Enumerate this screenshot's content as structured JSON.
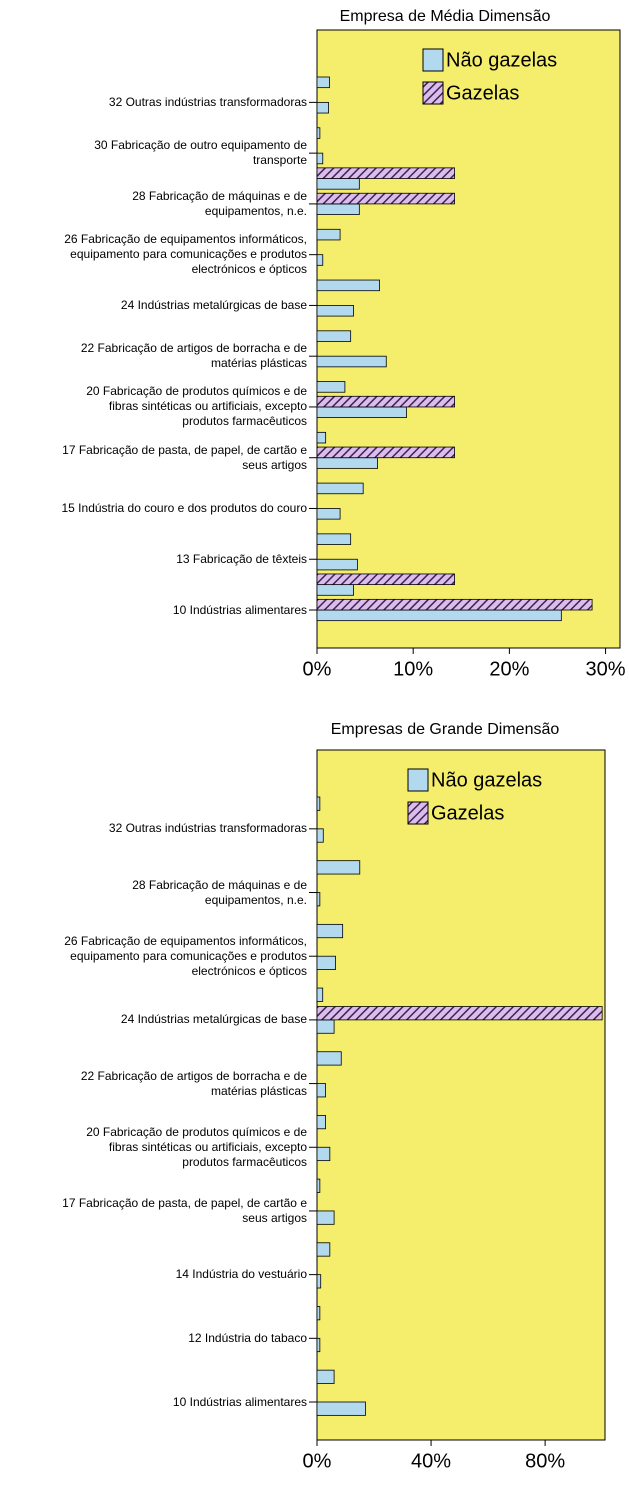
{
  "chart_data": [
    {
      "type": "bar",
      "orientation": "horizontal",
      "title": "Empresa de Média Dimensão",
      "categories": [
        null,
        "32 Outras indústrias transformadoras",
        null,
        "30 Fabricação de outro equipamento de\ntransporte",
        null,
        "28 Fabricação de máquinas e de\nequipamentos, n.e.",
        null,
        "26 Fabricação de equipamentos informáticos,\nequipamento para comunicações e produtos\nelectrónicos e ópticos",
        null,
        "24 Indústrias metalúrgicas de base",
        null,
        "22 Fabricação de artigos de borracha e de\nmatérias plásticas",
        null,
        "20 Fabricação de produtos químicos e de\nfibras sintéticas ou artificiais, excepto\nprodutos farmacêuticos",
        null,
        "17 Fabricação de pasta, de papel, de cartão e\nseus artigos",
        null,
        "15 Indústria do couro e dos produtos do couro",
        null,
        "13 Fabricação de têxteis",
        null,
        "10 Indústrias alimentares"
      ],
      "series": [
        {
          "name": "Não gazelas",
          "color": "#b3d9ee",
          "values": [
            1.3,
            1.2,
            0.3,
            0.6,
            4.4,
            4.4,
            2.4,
            0.6,
            6.5,
            3.8,
            3.5,
            7.2,
            2.9,
            9.3,
            0.9,
            6.3,
            4.8,
            2.4,
            3.5,
            4.2,
            3.8,
            25.4
          ]
        },
        {
          "name": "Gazelas",
          "color": "#dcbcec",
          "hatch": true,
          "values": [
            null,
            null,
            null,
            null,
            14.3,
            14.3,
            null,
            null,
            null,
            null,
            null,
            null,
            null,
            14.3,
            null,
            14.3,
            null,
            null,
            null,
            null,
            14.3,
            28.6
          ]
        }
      ],
      "xlim": [
        0,
        31.5
      ],
      "xticks": [
        {
          "value": 0,
          "label": "0%"
        },
        {
          "value": 10,
          "label": "10%"
        },
        {
          "value": 20,
          "label": "20%"
        },
        {
          "value": 30,
          "label": "30%"
        }
      ],
      "legend": "top-right",
      "background": "#f4ee6c"
    },
    {
      "type": "bar",
      "orientation": "horizontal",
      "title": "Empresas de Grande Dimensão",
      "categories": [
        null,
        "32 Outras indústrias transformadoras",
        null,
        "28 Fabricação de máquinas e de\nequipamentos, n.e.",
        null,
        "26 Fabricação de equipamentos informáticos,\nequipamento para comunicações e produtos\nelectrónicos e ópticos",
        null,
        "24 Indústrias metalúrgicas de base",
        null,
        "22 Fabricação de artigos de borracha e de\nmatérias plásticas",
        null,
        "20 Fabricação de produtos químicos e de\nfibras sintéticas ou artificiais, excepto\nprodutos farmacêuticos",
        null,
        "17 Fabricação de pasta, de papel, de cartão e\nseus artigos",
        null,
        "14 Indústria do vestuário",
        null,
        "12 Indústria do tabaco",
        null,
        "10 Indústrias alimentares"
      ],
      "series": [
        {
          "name": "Não gazelas",
          "color": "#b3d9ee",
          "values": [
            1,
            2.2,
            15,
            1,
            9,
            6.5,
            2,
            6,
            8.5,
            3,
            3,
            4.5,
            1,
            6,
            4.5,
            1.3,
            1,
            1,
            6,
            17
          ]
        },
        {
          "name": "Gazelas",
          "color": "#dcbcec",
          "hatch": true,
          "values": [
            null,
            null,
            null,
            null,
            null,
            null,
            null,
            100,
            null,
            null,
            null,
            null,
            null,
            null,
            null,
            null,
            null,
            null,
            null,
            null
          ]
        }
      ],
      "xlim": [
        0,
        101
      ],
      "xticks": [
        {
          "value": 0,
          "label": "0%"
        },
        {
          "value": 40,
          "label": "40%"
        },
        {
          "value": 80,
          "label": "80%"
        }
      ],
      "legend": "top-right",
      "background": "#f4ee6c"
    }
  ]
}
